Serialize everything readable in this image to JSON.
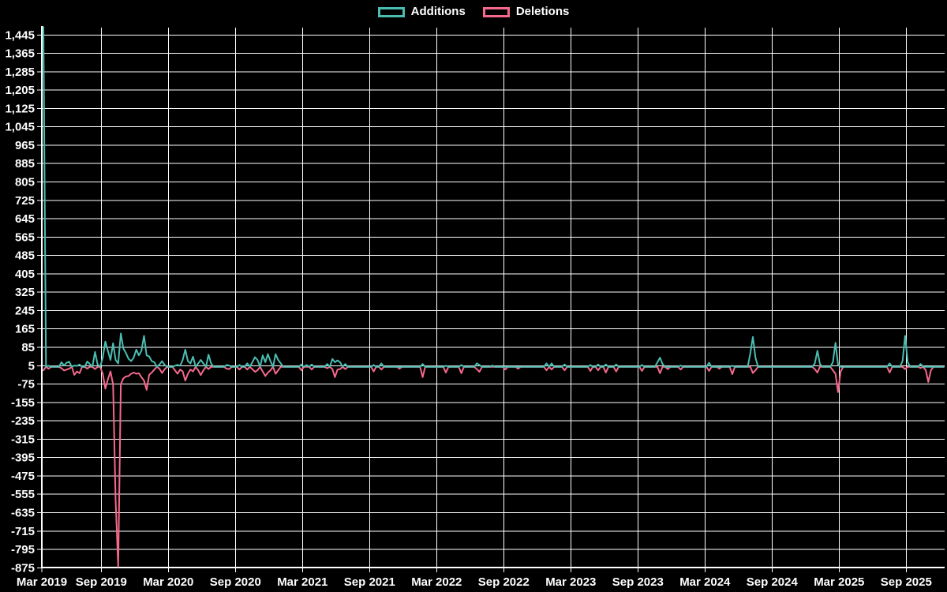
{
  "page": {
    "background": "#000000",
    "text_color": "#ffffff",
    "grid_color": "#ffffff"
  },
  "legend": {
    "position": "top"
  },
  "chart_data": {
    "type": "line",
    "title": "",
    "grid": true,
    "legend_position": "top",
    "x_axis": {
      "interval": "weekly points, tick labels every 6 months",
      "tick_labels": [
        "Mar 2019",
        "Sep 2019",
        "Mar 2020",
        "Sep 2020",
        "Mar 2021",
        "Sep 2021",
        "Mar 2022",
        "Sep 2022",
        "Mar 2023",
        "Sep 2023",
        "Mar 2024",
        "Sep 2024",
        "Mar 2025",
        "Sep 2025"
      ]
    },
    "y_axis": {
      "min": -875,
      "max": 1445,
      "step": 80,
      "tick_values": [
        1445,
        1365,
        1285,
        1205,
        1125,
        1045,
        965,
        885,
        805,
        725,
        645,
        565,
        485,
        405,
        325,
        245,
        165,
        85,
        5,
        -75,
        -155,
        -235,
        -315,
        -395,
        -475,
        -555,
        -635,
        -715,
        -795,
        -875
      ],
      "tick_labels": [
        "1,445",
        "1,365",
        "1,285",
        "1,205",
        "1,125",
        "1,045",
        "965",
        "885",
        "805",
        "725",
        "645",
        "565",
        "485",
        "405",
        "325",
        "245",
        "165",
        "85",
        "5",
        "-75",
        "-155",
        "-235",
        "-315",
        "-395",
        "-475",
        "-555",
        "-635",
        "-715",
        "-795",
        "-875"
      ]
    },
    "weeks_total": 350,
    "baseline_value": 0,
    "series": [
      {
        "name": "Additions",
        "color": "#4abdb1",
        "points_sparse": [
          [
            0,
            1480
          ],
          [
            2,
            5
          ],
          [
            7,
            20
          ],
          [
            8,
            6
          ],
          [
            9,
            18
          ],
          [
            10,
            22
          ],
          [
            12,
            6
          ],
          [
            13,
            4
          ],
          [
            14,
            10
          ],
          [
            17,
            23
          ],
          [
            18,
            12
          ],
          [
            20,
            65
          ],
          [
            21,
            10
          ],
          [
            23,
            40
          ],
          [
            24,
            110
          ],
          [
            25,
            70
          ],
          [
            26,
            30
          ],
          [
            27,
            103
          ],
          [
            28,
            30
          ],
          [
            29,
            15
          ],
          [
            30,
            145
          ],
          [
            31,
            80
          ],
          [
            32,
            60
          ],
          [
            33,
            35
          ],
          [
            34,
            25
          ],
          [
            35,
            40
          ],
          [
            36,
            75
          ],
          [
            37,
            50
          ],
          [
            38,
            70
          ],
          [
            39,
            135
          ],
          [
            40,
            50
          ],
          [
            41,
            45
          ],
          [
            42,
            25
          ],
          [
            43,
            20
          ],
          [
            45,
            10
          ],
          [
            46,
            25
          ],
          [
            47,
            8
          ],
          [
            51,
            5
          ],
          [
            52,
            8
          ],
          [
            53,
            5
          ],
          [
            54,
            30
          ],
          [
            55,
            75
          ],
          [
            56,
            25
          ],
          [
            57,
            15
          ],
          [
            58,
            44
          ],
          [
            60,
            15
          ],
          [
            61,
            30
          ],
          [
            62,
            15
          ],
          [
            64,
            53
          ],
          [
            65,
            15
          ],
          [
            71,
            8
          ],
          [
            72,
            6
          ],
          [
            76,
            8
          ],
          [
            79,
            15
          ],
          [
            81,
            20
          ],
          [
            82,
            42
          ],
          [
            83,
            30
          ],
          [
            85,
            50
          ],
          [
            86,
            20
          ],
          [
            87,
            55
          ],
          [
            88,
            25
          ],
          [
            90,
            55
          ],
          [
            91,
            30
          ],
          [
            92,
            15
          ],
          [
            100,
            10
          ],
          [
            102,
            8
          ],
          [
            104,
            10
          ],
          [
            110,
            12
          ],
          [
            112,
            34
          ],
          [
            113,
            20
          ],
          [
            114,
            28
          ],
          [
            115,
            20
          ],
          [
            117,
            12
          ],
          [
            128,
            8
          ],
          [
            131,
            15
          ],
          [
            147,
            12
          ],
          [
            156,
            5
          ],
          [
            162,
            8
          ],
          [
            168,
            15
          ],
          [
            169,
            8
          ],
          [
            174,
            6
          ],
          [
            195,
            15
          ],
          [
            197,
            15
          ],
          [
            202,
            10
          ],
          [
            212,
            8
          ],
          [
            215,
            10
          ],
          [
            218,
            10
          ],
          [
            222,
            10
          ],
          [
            232,
            8
          ],
          [
            238,
            20
          ],
          [
            239,
            40
          ],
          [
            240,
            12
          ],
          [
            247,
            6
          ],
          [
            258,
            18
          ],
          [
            267,
            5
          ],
          [
            274,
            60
          ],
          [
            275,
            130
          ],
          [
            276,
            40
          ],
          [
            299,
            15
          ],
          [
            300,
            70
          ],
          [
            301,
            12
          ],
          [
            306,
            20
          ],
          [
            307,
            105
          ],
          [
            308,
            10
          ],
          [
            328,
            15
          ],
          [
            333,
            25
          ],
          [
            334,
            135
          ],
          [
            335,
            20
          ],
          [
            340,
            12
          ]
        ]
      },
      {
        "name": "Deletions",
        "color": "#f4698c",
        "points_sparse": [
          [
            0,
            -15
          ],
          [
            2,
            -8
          ],
          [
            7,
            -6
          ],
          [
            8,
            -16
          ],
          [
            9,
            -12
          ],
          [
            10,
            -8
          ],
          [
            12,
            -35
          ],
          [
            13,
            -20
          ],
          [
            14,
            -28
          ],
          [
            17,
            -8
          ],
          [
            20,
            -10
          ],
          [
            23,
            -30
          ],
          [
            24,
            -95
          ],
          [
            25,
            -55
          ],
          [
            26,
            -20
          ],
          [
            27,
            -77
          ],
          [
            28,
            -580
          ],
          [
            29,
            -870
          ],
          [
            30,
            -75
          ],
          [
            31,
            -50
          ],
          [
            32,
            -42
          ],
          [
            33,
            -40
          ],
          [
            34,
            -30
          ],
          [
            35,
            -25
          ],
          [
            36,
            -30
          ],
          [
            37,
            -28
          ],
          [
            38,
            -45
          ],
          [
            39,
            -60
          ],
          [
            40,
            -100
          ],
          [
            41,
            -35
          ],
          [
            42,
            -25
          ],
          [
            43,
            -12
          ],
          [
            45,
            -8
          ],
          [
            46,
            -27
          ],
          [
            47,
            -10
          ],
          [
            51,
            -15
          ],
          [
            52,
            -30
          ],
          [
            53,
            -12
          ],
          [
            54,
            -20
          ],
          [
            55,
            -60
          ],
          [
            56,
            -30
          ],
          [
            57,
            -12
          ],
          [
            58,
            -20
          ],
          [
            60,
            -15
          ],
          [
            61,
            -36
          ],
          [
            62,
            -15
          ],
          [
            64,
            -10
          ],
          [
            71,
            -8
          ],
          [
            72,
            -10
          ],
          [
            76,
            -12
          ],
          [
            79,
            -12
          ],
          [
            81,
            -10
          ],
          [
            82,
            -22
          ],
          [
            83,
            -15
          ],
          [
            85,
            -20
          ],
          [
            86,
            -40
          ],
          [
            87,
            -25
          ],
          [
            88,
            -15
          ],
          [
            90,
            -30
          ],
          [
            91,
            -15
          ],
          [
            100,
            -15
          ],
          [
            104,
            -12
          ],
          [
            110,
            -6
          ],
          [
            112,
            -10
          ],
          [
            113,
            -45
          ],
          [
            114,
            -12
          ],
          [
            115,
            -10
          ],
          [
            117,
            -10
          ],
          [
            128,
            -20
          ],
          [
            131,
            -12
          ],
          [
            138,
            -8
          ],
          [
            147,
            -45
          ],
          [
            156,
            -25
          ],
          [
            162,
            -28
          ],
          [
            168,
            -10
          ],
          [
            169,
            -22
          ],
          [
            179,
            -12
          ],
          [
            184,
            -8
          ],
          [
            195,
            -15
          ],
          [
            197,
            -12
          ],
          [
            202,
            -15
          ],
          [
            212,
            -18
          ],
          [
            215,
            -15
          ],
          [
            218,
            -25
          ],
          [
            222,
            -20
          ],
          [
            232,
            -18
          ],
          [
            239,
            -28
          ],
          [
            242,
            -10
          ],
          [
            247,
            -12
          ],
          [
            258,
            -18
          ],
          [
            262,
            -8
          ],
          [
            267,
            -32
          ],
          [
            275,
            -27
          ],
          [
            276,
            -15
          ],
          [
            299,
            -10
          ],
          [
            300,
            -25
          ],
          [
            306,
            -15
          ],
          [
            307,
            -30
          ],
          [
            308,
            -110
          ],
          [
            309,
            -20
          ],
          [
            328,
            -25
          ],
          [
            334,
            -10
          ],
          [
            340,
            -5
          ],
          [
            342,
            -15
          ],
          [
            343,
            -66
          ],
          [
            344,
            -15
          ]
        ]
      }
    ]
  }
}
